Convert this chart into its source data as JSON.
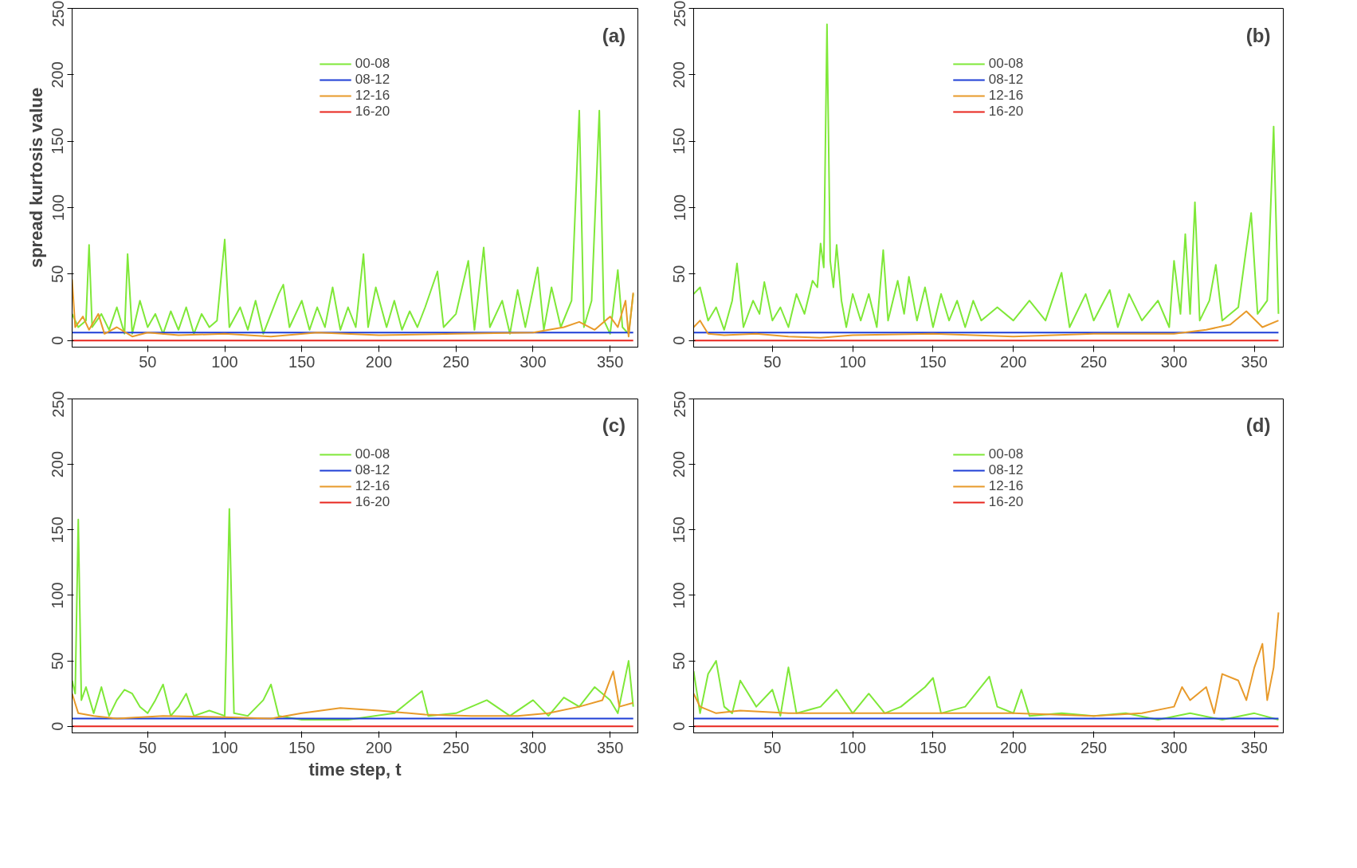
{
  "chart_data": [
    {
      "type": "line",
      "ylabel": "spread kurtosis value",
      "annotations": [
        "(a)"
      ],
      "xlim": [
        1,
        368
      ],
      "ylim": [
        -5,
        250
      ],
      "xticks": [
        50,
        100,
        150,
        200,
        250,
        300,
        350
      ],
      "yticks": [
        0,
        50,
        100,
        150,
        200,
        250
      ],
      "grid": false,
      "legend": "top",
      "series": [
        {
          "name": "00-08",
          "color": "#7fe838",
          "x": [
            1,
            5,
            10,
            12,
            14,
            20,
            25,
            30,
            35,
            37,
            40,
            45,
            50,
            55,
            60,
            65,
            70,
            75,
            80,
            85,
            90,
            95,
            100,
            103,
            110,
            115,
            120,
            125,
            130,
            135,
            138,
            142,
            150,
            155,
            160,
            165,
            170,
            175,
            180,
            185,
            190,
            193,
            198,
            205,
            210,
            215,
            220,
            225,
            230,
            238,
            242,
            250,
            258,
            262,
            268,
            272,
            280,
            285,
            290,
            295,
            303,
            307,
            312,
            318,
            325,
            330,
            333,
            338,
            343,
            346,
            350,
            355,
            358,
            362,
            365
          ],
          "values": [
            20,
            10,
            15,
            72,
            10,
            20,
            8,
            25,
            5,
            65,
            5,
            30,
            10,
            20,
            5,
            22,
            8,
            25,
            5,
            20,
            10,
            15,
            76,
            10,
            25,
            8,
            30,
            5,
            20,
            35,
            42,
            10,
            30,
            8,
            25,
            10,
            40,
            8,
            25,
            10,
            65,
            10,
            40,
            10,
            30,
            8,
            22,
            10,
            25,
            52,
            10,
            20,
            60,
            8,
            70,
            10,
            30,
            5,
            38,
            10,
            55,
            8,
            40,
            10,
            30,
            173,
            10,
            30,
            173,
            15,
            5,
            53,
            10,
            5,
            35
          ]
        },
        {
          "name": "08-12",
          "color": "#1f3fd6",
          "x": [
            1,
            365
          ],
          "values": [
            6,
            6
          ]
        },
        {
          "name": "12-16",
          "color": "#e89a2a",
          "x": [
            1,
            3,
            8,
            12,
            18,
            22,
            30,
            40,
            50,
            70,
            100,
            130,
            160,
            200,
            250,
            300,
            320,
            330,
            340,
            350,
            355,
            360,
            362,
            365
          ],
          "values": [
            46,
            10,
            18,
            8,
            20,
            5,
            10,
            3,
            6,
            4,
            5,
            3,
            6,
            4,
            5,
            6,
            10,
            14,
            8,
            18,
            10,
            30,
            3,
            36
          ]
        },
        {
          "name": "16-20",
          "color": "#e8261e",
          "x": [
            1,
            365
          ],
          "values": [
            0,
            0
          ]
        }
      ]
    },
    {
      "type": "line",
      "annotations": [
        "(b)"
      ],
      "xlim": [
        1,
        368
      ],
      "ylim": [
        -5,
        250
      ],
      "xticks": [
        50,
        100,
        150,
        200,
        250,
        300,
        350
      ],
      "yticks": [
        0,
        50,
        100,
        150,
        200,
        250
      ],
      "grid": false,
      "legend": "top",
      "series": [
        {
          "name": "00-08",
          "color": "#7fe838",
          "x": [
            1,
            5,
            10,
            15,
            20,
            25,
            28,
            32,
            38,
            42,
            45,
            50,
            55,
            60,
            65,
            70,
            75,
            78,
            80,
            82,
            84,
            86,
            88,
            90,
            93,
            96,
            100,
            105,
            110,
            115,
            119,
            122,
            128,
            132,
            135,
            140,
            145,
            150,
            155,
            160,
            165,
            170,
            175,
            180,
            190,
            200,
            210,
            220,
            230,
            235,
            245,
            250,
            260,
            265,
            272,
            280,
            290,
            297,
            300,
            304,
            307,
            310,
            313,
            316,
            322,
            326,
            330,
            340,
            348,
            352,
            358,
            362,
            365
          ],
          "values": [
            35,
            40,
            15,
            25,
            8,
            30,
            58,
            10,
            30,
            20,
            44,
            15,
            25,
            10,
            35,
            20,
            45,
            40,
            73,
            55,
            238,
            60,
            40,
            72,
            30,
            10,
            35,
            15,
            35,
            10,
            68,
            15,
            45,
            20,
            48,
            15,
            40,
            10,
            35,
            15,
            30,
            10,
            30,
            15,
            25,
            15,
            30,
            15,
            51,
            10,
            35,
            15,
            38,
            10,
            35,
            15,
            30,
            10,
            60,
            20,
            80,
            20,
            104,
            15,
            30,
            57,
            15,
            25,
            96,
            20,
            30,
            161,
            20
          ]
        },
        {
          "name": "08-12",
          "color": "#1f3fd6",
          "x": [
            1,
            365
          ],
          "values": [
            6,
            6
          ]
        },
        {
          "name": "12-16",
          "color": "#e89a2a",
          "x": [
            1,
            5,
            10,
            20,
            40,
            60,
            80,
            100,
            150,
            200,
            250,
            300,
            320,
            335,
            345,
            355,
            365
          ],
          "values": [
            10,
            15,
            5,
            4,
            5,
            3,
            2,
            4,
            5,
            3,
            5,
            5,
            8,
            12,
            22,
            10,
            15
          ]
        },
        {
          "name": "16-20",
          "color": "#e8261e",
          "x": [
            1,
            365
          ],
          "values": [
            0,
            0
          ]
        }
      ]
    },
    {
      "type": "line",
      "xlabel": "time step, t",
      "annotations": [
        "(c)"
      ],
      "xlim": [
        1,
        368
      ],
      "ylim": [
        -5,
        250
      ],
      "xticks": [
        50,
        100,
        150,
        200,
        250,
        300,
        350
      ],
      "yticks": [
        0,
        50,
        100,
        150,
        200,
        250
      ],
      "grid": false,
      "legend": "top",
      "series": [
        {
          "name": "00-08",
          "color": "#7fe838",
          "x": [
            1,
            3,
            5,
            7,
            10,
            15,
            20,
            25,
            30,
            35,
            40,
            45,
            50,
            55,
            60,
            65,
            70,
            75,
            80,
            90,
            100,
            103,
            106,
            115,
            125,
            130,
            135,
            150,
            180,
            210,
            228,
            232,
            250,
            270,
            285,
            300,
            310,
            320,
            330,
            340,
            350,
            355,
            362,
            365
          ],
          "values": [
            35,
            25,
            158,
            20,
            30,
            10,
            30,
            8,
            20,
            28,
            25,
            15,
            10,
            20,
            32,
            8,
            15,
            25,
            8,
            12,
            8,
            166,
            10,
            8,
            20,
            32,
            8,
            5,
            5,
            10,
            27,
            8,
            10,
            20,
            8,
            20,
            8,
            22,
            15,
            30,
            20,
            10,
            50,
            15
          ]
        },
        {
          "name": "08-12",
          "color": "#1f3fd6",
          "x": [
            1,
            365
          ],
          "values": [
            6,
            6
          ]
        },
        {
          "name": "12-16",
          "color": "#e89a2a",
          "x": [
            1,
            5,
            15,
            30,
            60,
            100,
            130,
            150,
            175,
            200,
            230,
            260,
            290,
            310,
            330,
            345,
            352,
            356,
            365
          ],
          "values": [
            25,
            10,
            8,
            6,
            8,
            7,
            6,
            10,
            14,
            12,
            9,
            8,
            8,
            10,
            15,
            20,
            42,
            15,
            18
          ]
        },
        {
          "name": "16-20",
          "color": "#e8261e",
          "x": [
            1,
            365
          ],
          "values": [
            0,
            0
          ]
        }
      ]
    },
    {
      "type": "line",
      "annotations": [
        "(d)"
      ],
      "xlim": [
        1,
        368
      ],
      "ylim": [
        -5,
        250
      ],
      "xticks": [
        50,
        100,
        150,
        200,
        250,
        300,
        350
      ],
      "yticks": [
        0,
        50,
        100,
        150,
        200,
        250
      ],
      "grid": false,
      "legend": "top",
      "series": [
        {
          "name": "00-08",
          "color": "#7fe838",
          "x": [
            1,
            5,
            10,
            15,
            20,
            25,
            30,
            40,
            50,
            55,
            60,
            65,
            80,
            90,
            100,
            110,
            120,
            130,
            145,
            150,
            155,
            170,
            185,
            190,
            200,
            205,
            210,
            230,
            250,
            270,
            290,
            310,
            330,
            350,
            365
          ],
          "values": [
            42,
            10,
            40,
            50,
            15,
            10,
            35,
            15,
            28,
            8,
            45,
            10,
            15,
            28,
            10,
            25,
            10,
            15,
            30,
            37,
            10,
            15,
            38,
            15,
            10,
            28,
            8,
            10,
            8,
            10,
            5,
            10,
            5,
            10,
            5
          ]
        },
        {
          "name": "08-12",
          "color": "#1f3fd6",
          "x": [
            1,
            365
          ],
          "values": [
            6,
            6
          ]
        },
        {
          "name": "12-16",
          "color": "#e89a2a",
          "x": [
            1,
            5,
            15,
            30,
            60,
            100,
            150,
            200,
            250,
            280,
            300,
            305,
            310,
            320,
            325,
            330,
            340,
            345,
            350,
            355,
            358,
            362,
            365
          ],
          "values": [
            25,
            15,
            10,
            12,
            10,
            10,
            10,
            10,
            8,
            10,
            15,
            30,
            20,
            30,
            10,
            40,
            35,
            20,
            45,
            63,
            20,
            45,
            87
          ]
        },
        {
          "name": "16-20",
          "color": "#e8261e",
          "x": [
            1,
            365
          ],
          "values": [
            0,
            0
          ]
        }
      ]
    }
  ]
}
